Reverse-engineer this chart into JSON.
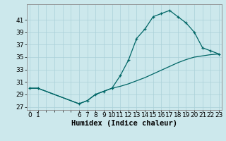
{
  "xlabel": "Humidex (Indice chaleur)",
  "background_color": "#cce8ec",
  "line_color": "#006666",
  "marker": "+",
  "x_values": [
    0,
    1,
    6,
    7,
    8,
    9,
    10,
    11,
    12,
    13,
    14,
    15,
    16,
    17,
    18,
    19,
    20,
    21,
    22,
    23
  ],
  "y_values": [
    30.0,
    30.0,
    27.5,
    28.0,
    29.0,
    29.5,
    30.0,
    32.0,
    34.5,
    38.0,
    39.5,
    41.5,
    42.0,
    42.5,
    41.5,
    40.5,
    39.0,
    36.5,
    36.0,
    35.5
  ],
  "y2_values": [
    30.0,
    30.0,
    27.5,
    28.0,
    29.0,
    29.5,
    30.0,
    30.3,
    30.7,
    31.2,
    31.7,
    32.3,
    32.9,
    33.5,
    34.1,
    34.6,
    35.0,
    35.2,
    35.4,
    35.5
  ],
  "ylim": [
    26.5,
    43.5
  ],
  "yticks": [
    27,
    29,
    31,
    33,
    35,
    37,
    39,
    41
  ],
  "xlim": [
    -0.3,
    23.3
  ],
  "grid_color": "#aad0d8",
  "font_size": 6.5,
  "xlabel_fontsize": 7.5
}
